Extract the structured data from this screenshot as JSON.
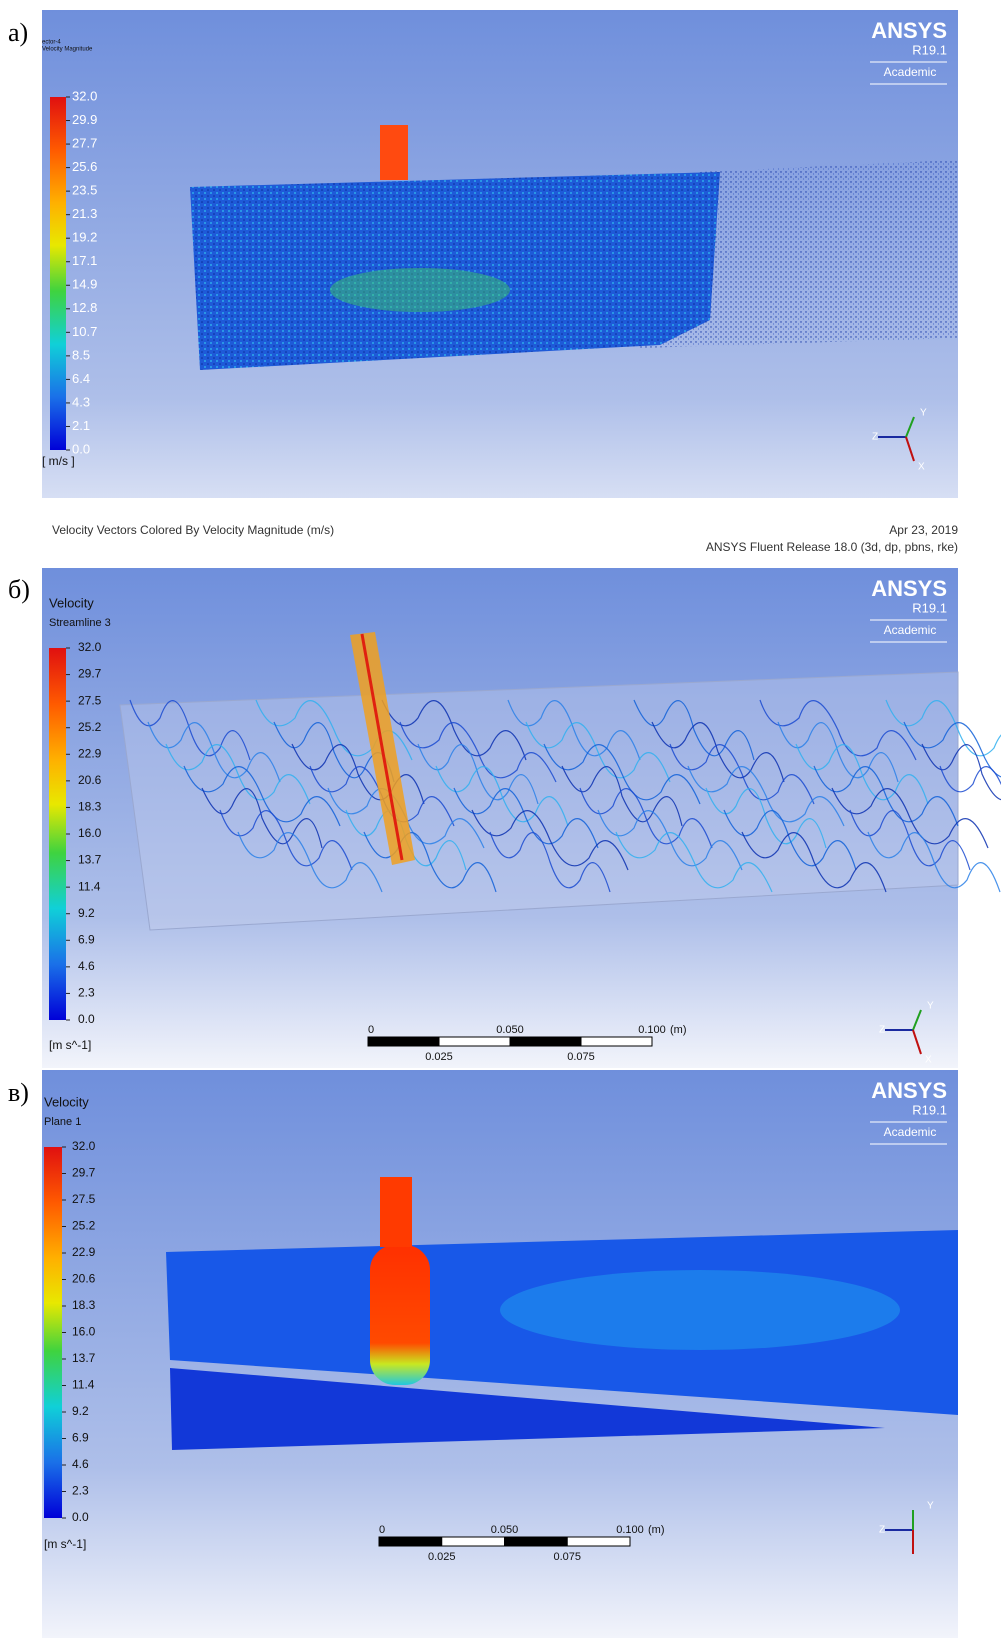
{
  "panels": [
    {
      "label": "а)",
      "legend_title": "ector-4",
      "legend_subtitle": "Velocity Magnitude",
      "ticks": [
        "32.0",
        "29.9",
        "27.7",
        "25.6",
        "23.5",
        "21.3",
        "19.2",
        "17.1",
        "14.9",
        "12.8",
        "10.7",
        "8.5",
        "6.4",
        "4.3",
        "2.1",
        "0.0"
      ],
      "unit": "[ m/s ]",
      "logo": {
        "brand": "ANSYS",
        "version": "R19.1",
        "edition": "Academic"
      },
      "triad": [
        "Z",
        "Y",
        "X"
      ],
      "footer": {
        "caption": "Velocity Vectors Colored By Velocity Magnitude (m/s)",
        "date": "Apr 23, 2019",
        "release": "ANSYS Fluent Release 18.0 (3d, dp, pbns, rke)"
      }
    },
    {
      "label": "б)",
      "legend_title": "Velocity",
      "legend_subtitle": "Streamline 3",
      "ticks": [
        "32.0",
        "29.7",
        "27.5",
        "25.2",
        "22.9",
        "20.6",
        "18.3",
        "16.0",
        "13.7",
        "11.4",
        "9.2",
        "6.9",
        "4.6",
        "2.3",
        "0.0"
      ],
      "unit": "[m s^-1]",
      "logo": {
        "brand": "ANSYS",
        "version": "R19.1",
        "edition": "Academic"
      },
      "triad": [
        "Z",
        "Y",
        "X"
      ],
      "scale_bar": {
        "top": [
          "0",
          "0.050",
          "0.100"
        ],
        "unit": "(m)",
        "bottom": [
          "0.025",
          "0.075"
        ]
      }
    },
    {
      "label": "в)",
      "legend_title": "Velocity",
      "legend_subtitle": "Plane 1",
      "ticks": [
        "32.0",
        "29.7",
        "27.5",
        "25.2",
        "22.9",
        "20.6",
        "18.3",
        "16.0",
        "13.7",
        "11.4",
        "9.2",
        "6.9",
        "4.6",
        "2.3",
        "0.0"
      ],
      "unit": "[m s^-1]",
      "logo": {
        "brand": "ANSYS",
        "version": "R19.1",
        "edition": "Academic"
      },
      "triad": [
        "Z",
        "Y"
      ],
      "scale_bar": {
        "top": [
          "0",
          "0.050",
          "0.100"
        ],
        "unit": "(m)",
        "bottom": [
          "0.025",
          "0.075"
        ]
      }
    }
  ]
}
